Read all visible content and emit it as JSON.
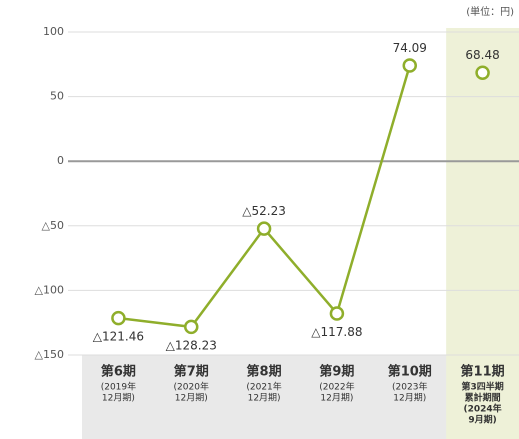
{
  "chart_data": {
    "type": "line",
    "unit_label": "(単位：円)",
    "categories": [
      [
        "第6期",
        "(2019年",
        "12月期)"
      ],
      [
        "第7期",
        "(2020年",
        "12月期)"
      ],
      [
        "第8期",
        "(2021年",
        "12月期)"
      ],
      [
        "第9期",
        "(2022年",
        "12月期)"
      ],
      [
        "第10期",
        "(2023年",
        "12月期)"
      ],
      [
        "第11期",
        "第3四半期",
        "累計期間",
        "(2024年",
        "9月期)"
      ]
    ],
    "series": [
      {
        "color": "#8fae2b",
        "values": [
          -121.46,
          -128.23,
          -52.23,
          -117.88,
          74.09,
          null
        ],
        "value_labels": [
          "△121.46",
          "△128.23",
          "△52.23",
          "△117.88",
          "74.09",
          null
        ]
      },
      {
        "color": "#8fae2b",
        "values": [
          null,
          null,
          null,
          null,
          null,
          68.48
        ],
        "value_labels": [
          null,
          null,
          null,
          null,
          null,
          "68.48"
        ]
      }
    ],
    "highlight_category": 5,
    "ylim": [
      -150,
      100
    ],
    "yticks": [
      {
        "value": -150,
        "label": "△150"
      },
      {
        "value": -100,
        "label": "△100"
      },
      {
        "value": -50,
        "label": "△50"
      },
      0,
      50,
      100
    ],
    "grid": true
  }
}
